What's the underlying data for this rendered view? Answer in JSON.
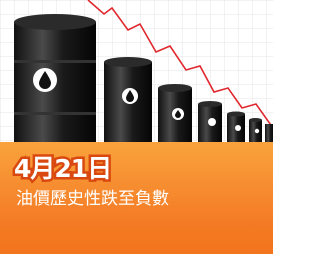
{
  "headline": {
    "date": "4月21日",
    "caption": "油價歷史性跌至負數"
  }
}
